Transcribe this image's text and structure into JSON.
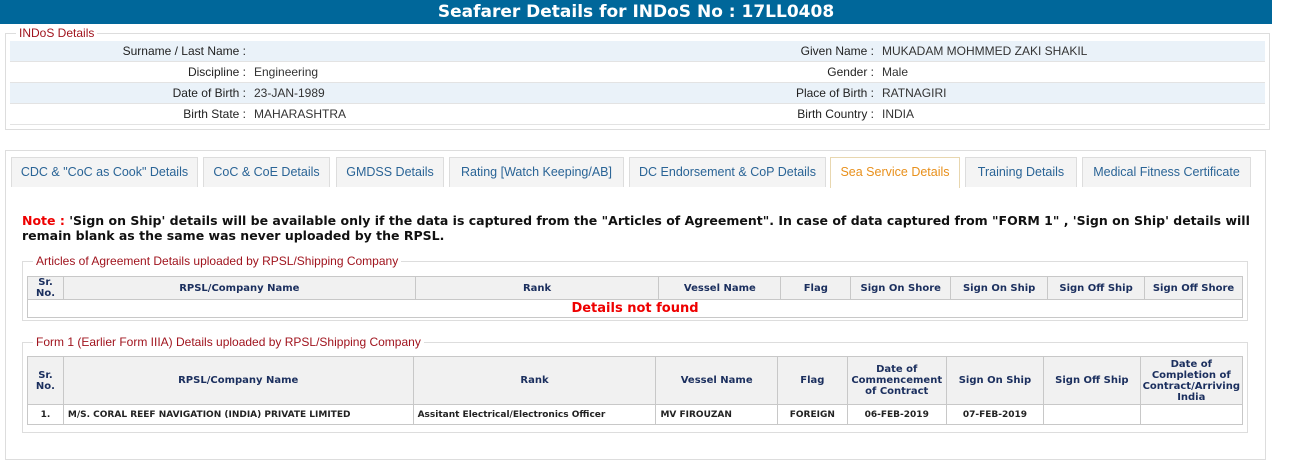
{
  "header": {
    "title": "Seafarer Details for INDoS No : 17LL0408"
  },
  "indos": {
    "legend": "INDoS Details",
    "rows": [
      {
        "l1": "Surname / Last Name :",
        "v1": "",
        "l2": "Given Name :",
        "v2": "MUKADAM MOHMMED ZAKI SHAKIL"
      },
      {
        "l1": "Discipline :",
        "v1": "Engineering",
        "l2": "Gender :",
        "v2": "Male"
      },
      {
        "l1": "Date of Birth :",
        "v1": "23-JAN-1989",
        "l2": "Place of Birth :",
        "v2": "RATNAGIRI"
      },
      {
        "l1": "Birth State :",
        "v1": "MAHARASHTRA",
        "l2": "Birth Country :",
        "v2": "INDIA"
      }
    ]
  },
  "tabs": [
    "CDC & \"CoC as Cook\" Details",
    "CoC & CoE Details",
    "GMDSS Details",
    "Rating [Watch Keeping/AB]",
    "DC Endorsement & CoP Details",
    "Sea Service Details",
    "Training Details",
    "Medical Fitness Certificate"
  ],
  "active_tab": "Sea Service Details",
  "note": {
    "prefix": "Note :",
    "text": " 'Sign on Ship' details will be available only if the data is captured from the \"Articles of Agreement\". In case of data captured from \"FORM 1\" , 'Sign on Ship' details will remain blank as the same was never uploaded by the RPSL."
  },
  "aoa": {
    "legend": "Articles of Agreement Details uploaded by RPSL/Shipping Company",
    "headers": [
      "Sr. No.",
      "RPSL/Company Name",
      "Rank",
      "Vessel Name",
      "Flag",
      "Sign On Shore",
      "Sign On Ship",
      "Sign Off Ship",
      "Sign Off Shore"
    ],
    "empty": "Details not found"
  },
  "form1": {
    "legend": "Form 1 (Earlier Form IIIA) Details uploaded by RPSL/Shipping Company",
    "headers": [
      "Sr. No.",
      "RPSL/Company Name",
      "Rank",
      "Vessel Name",
      "Flag",
      "Date of Commencement of Contract",
      "Sign On Ship",
      "Sign Off Ship",
      "Date of Completion of Contract/Arriving India"
    ],
    "rows": [
      [
        "1.",
        "M/S. CORAL REEF NAVIGATION (INDIA) PRIVATE LIMITED",
        "Assitant Electrical/Electronics Officer",
        "MV FIROUZAN",
        "FOREIGN",
        "06-FEB-2019",
        "07-FEB-2019",
        "",
        ""
      ]
    ]
  }
}
